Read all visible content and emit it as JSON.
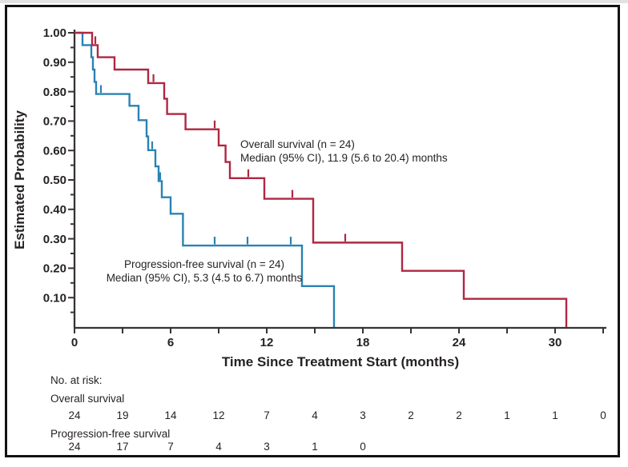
{
  "figure": {
    "background": "#ffffff",
    "border_color": "#131313",
    "axis_color": "#373334",
    "text_color": "#262223"
  },
  "chart_data": {
    "type": "line",
    "subtype": "kaplan-meier-step",
    "title": "",
    "xlabel": "Time Since Treatment Start (months)",
    "ylabel": "Estimated Probability",
    "xlim": [
      0,
      33.2
    ],
    "ylim": [
      0,
      1.0
    ],
    "grid": false,
    "legend_position": "inline-annotations",
    "xticks": {
      "values": [
        0,
        3,
        6,
        9,
        12,
        15,
        18,
        21,
        24,
        27,
        30,
        33
      ],
      "labeled": [
        0,
        6,
        12,
        18,
        24,
        30
      ]
    },
    "yticks": {
      "major_labels": [
        "1.00",
        "0.90",
        "0.80",
        "0.70",
        "0.60",
        "0.50",
        "0.40",
        "0.30",
        "0.20",
        "0.10"
      ],
      "minor_step": 0.05
    },
    "series": [
      {
        "name": "Overall survival",
        "color": "#af2742",
        "steps": [
          [
            0,
            1.0
          ],
          [
            1.1,
            0.958
          ],
          [
            1.45,
            0.917
          ],
          [
            2.5,
            0.875
          ],
          [
            4.6,
            0.829
          ],
          [
            5.6,
            0.776
          ],
          [
            5.78,
            0.724
          ],
          [
            6.93,
            0.672
          ],
          [
            9.0,
            0.617
          ],
          [
            9.43,
            0.561
          ],
          [
            9.7,
            0.506
          ],
          [
            11.85,
            0.436
          ],
          [
            14.9,
            0.287
          ],
          [
            20.45,
            0.191
          ],
          [
            24.3,
            0.096
          ],
          [
            30.7,
            0.0
          ]
        ],
        "censors": [
          [
            1.3,
            0.958
          ],
          [
            4.93,
            0.829
          ],
          [
            8.75,
            0.672
          ],
          [
            10.85,
            0.506
          ],
          [
            13.6,
            0.436
          ],
          [
            16.9,
            0.287
          ]
        ],
        "annotation": {
          "lines": [
            "Overall survival (n = 24)",
            "Median (95% CI), 11.9 (5.6 to 20.4) months"
          ]
        }
      },
      {
        "name": "Progression-free survival",
        "color": "#2a82b3",
        "steps": [
          [
            0,
            1.0
          ],
          [
            0.5,
            0.958
          ],
          [
            1.05,
            0.917
          ],
          [
            1.15,
            0.875
          ],
          [
            1.25,
            0.833
          ],
          [
            1.35,
            0.792
          ],
          [
            3.43,
            0.752
          ],
          [
            4.0,
            0.703
          ],
          [
            4.5,
            0.648
          ],
          [
            4.6,
            0.601
          ],
          [
            5.05,
            0.546
          ],
          [
            5.25,
            0.496
          ],
          [
            5.45,
            0.441
          ],
          [
            6.0,
            0.385
          ],
          [
            6.77,
            0.277
          ],
          [
            14.2,
            0.139
          ],
          [
            16.2,
            0.0
          ]
        ],
        "censors": [
          [
            1.65,
            0.792
          ],
          [
            4.85,
            0.601
          ],
          [
            5.35,
            0.496
          ],
          [
            8.75,
            0.277
          ],
          [
            10.8,
            0.277
          ],
          [
            13.5,
            0.277
          ]
        ],
        "annotation": {
          "lines": [
            "Progression-free survival (n = 24)",
            "Median (95% CI), 5.3 (4.5 to 6.7) months"
          ]
        }
      }
    ],
    "risk_table": {
      "title": "No. at risk:",
      "rows": [
        {
          "label": "Overall survival",
          "times": [
            0,
            3,
            6,
            9,
            12,
            15,
            18,
            21,
            24,
            27,
            30,
            33
          ],
          "counts": [
            24,
            19,
            14,
            12,
            7,
            4,
            3,
            2,
            2,
            1,
            1,
            0
          ]
        },
        {
          "label": "Progression-free survival",
          "times": [
            0,
            3,
            6,
            9,
            12,
            15,
            18
          ],
          "counts": [
            24,
            17,
            7,
            4,
            3,
            1,
            0
          ]
        }
      ]
    }
  }
}
